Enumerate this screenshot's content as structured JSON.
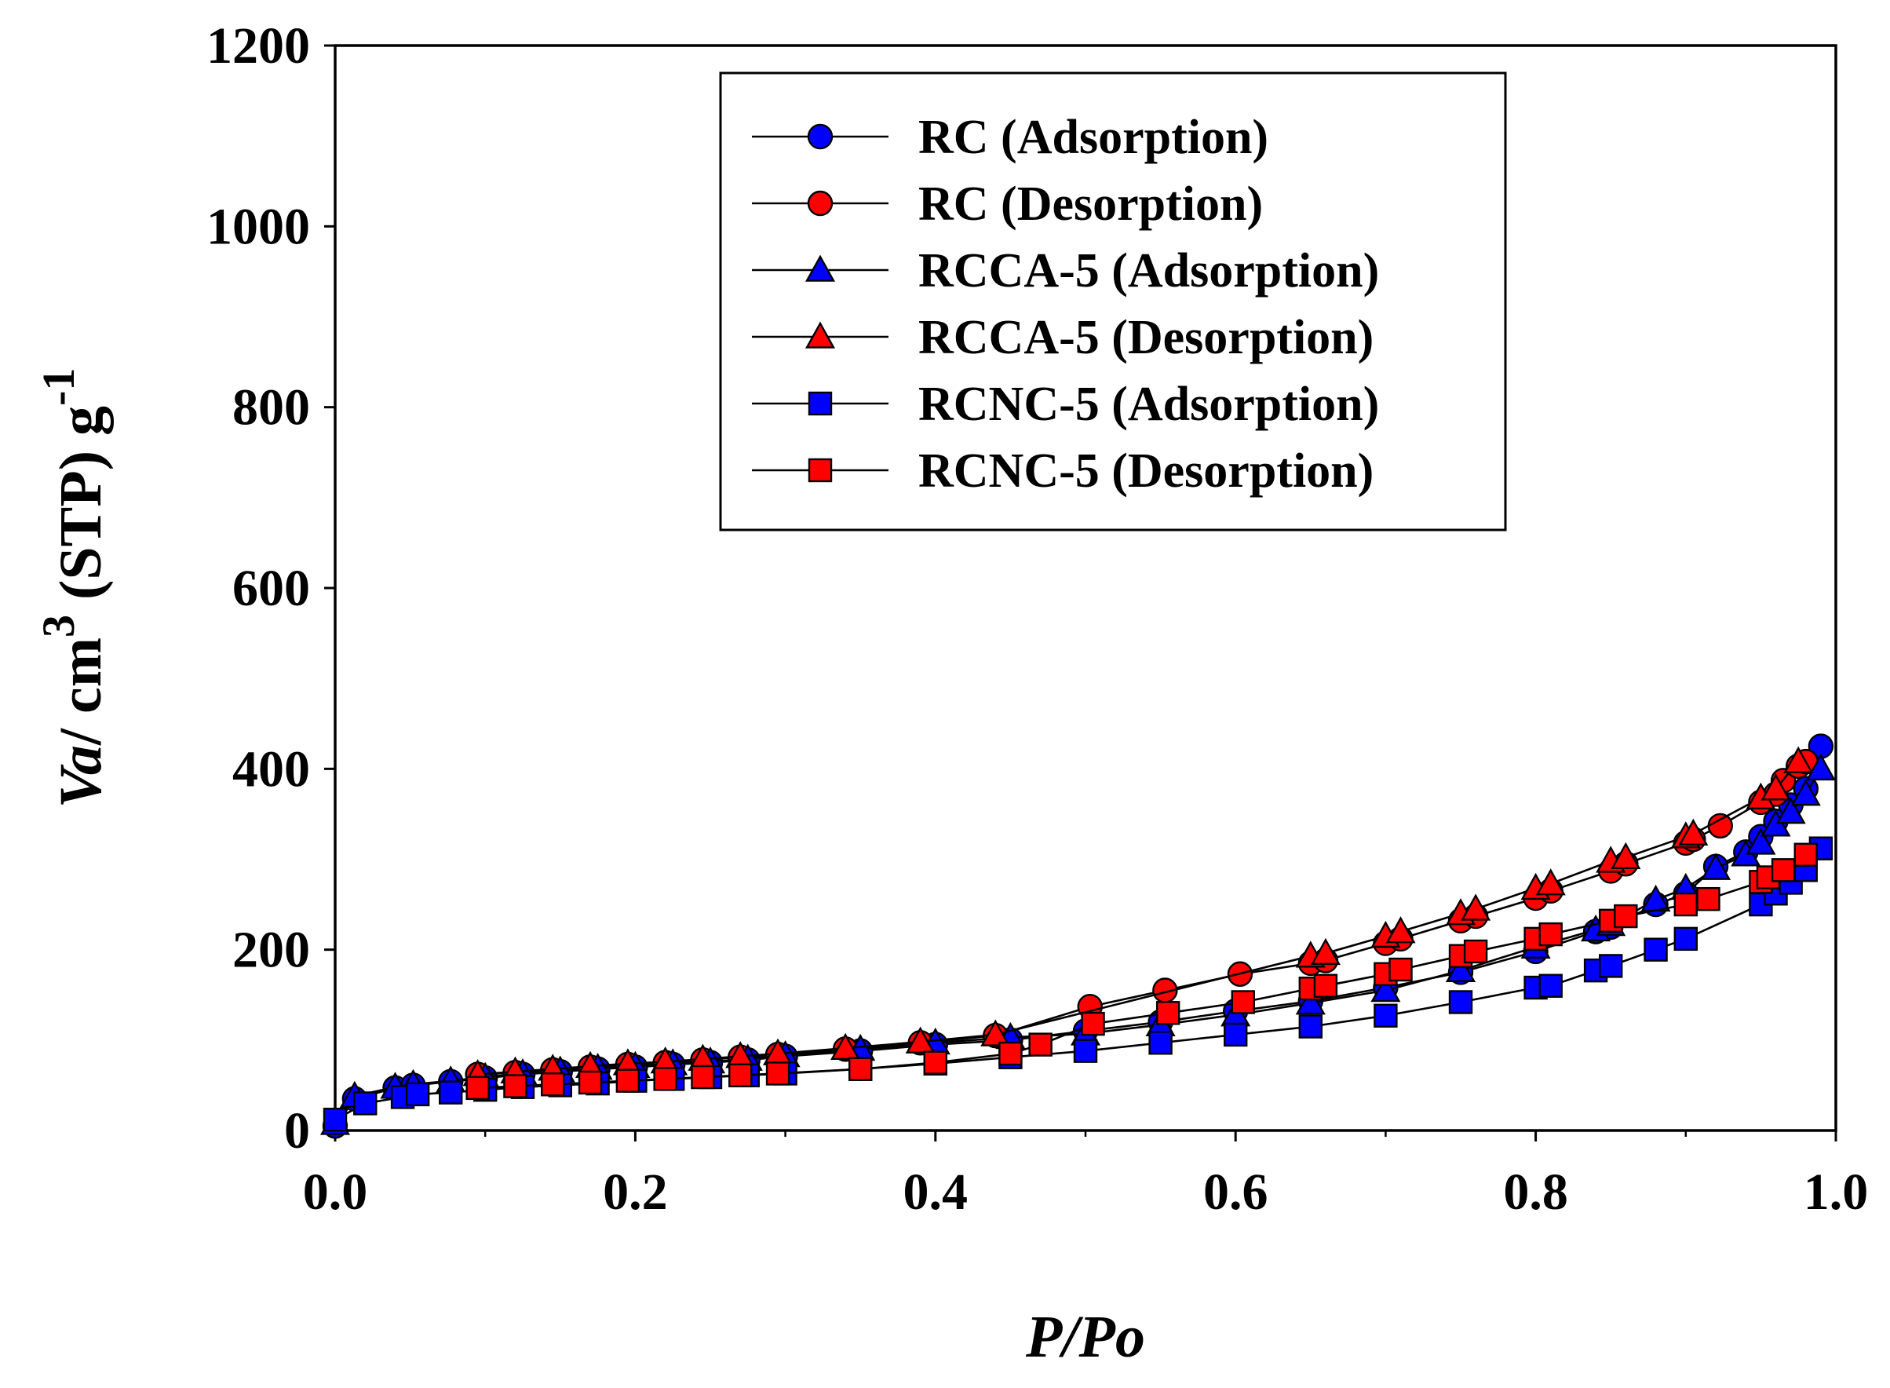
{
  "colors": {
    "adsorption": "#0000FF",
    "desorption": "#FF0000",
    "line": "#000000"
  },
  "chart_data": {
    "type": "line",
    "title": "",
    "xlabel": "P/Po",
    "ylabel": "Va/ cm3 (STP) g-1",
    "ylabel_parts": {
      "va": "Va",
      "unit": "/ cm",
      "exp1": "3",
      "stp": " (STP) g",
      "exp2": "-1"
    },
    "xlim": [
      0.0,
      1.0
    ],
    "ylim": [
      0,
      1200
    ],
    "xticks": [
      "0.0",
      "0.2",
      "0.4",
      "0.6",
      "0.8",
      "1.0"
    ],
    "yticks": [
      "0",
      "200",
      "400",
      "600",
      "800",
      "1000",
      "1200"
    ],
    "legend_position": "top-center",
    "series": [
      {
        "name": "RC (Adsorption)",
        "marker": "circle",
        "color": "#0000FF",
        "x": [
          0.0,
          0.013,
          0.04,
          0.052,
          0.077,
          0.1,
          0.125,
          0.15,
          0.175,
          0.2,
          0.225,
          0.25,
          0.275,
          0.3,
          0.35,
          0.4,
          0.45,
          0.5,
          0.55,
          0.6,
          0.65,
          0.7,
          0.75,
          0.8,
          0.84,
          0.85,
          0.88,
          0.9,
          0.92,
          0.94,
          0.95,
          0.96,
          0.97,
          0.98,
          0.99
        ],
        "y": [
          5,
          35,
          47,
          50,
          54,
          58,
          62,
          65,
          68,
          70,
          73,
          75,
          78,
          82,
          88,
          95,
          100,
          110,
          120,
          132,
          143,
          158,
          175,
          198,
          220,
          225,
          250,
          262,
          292,
          308,
          325,
          342,
          360,
          378,
          425
        ]
      },
      {
        "name": "RC (Desorption)",
        "marker": "circle",
        "color": "#FF0000",
        "x": [
          0.095,
          0.12,
          0.145,
          0.17,
          0.195,
          0.22,
          0.245,
          0.27,
          0.295,
          0.34,
          0.39,
          0.44,
          0.503,
          0.553,
          0.603,
          0.65,
          0.66,
          0.7,
          0.71,
          0.75,
          0.76,
          0.8,
          0.81,
          0.85,
          0.86,
          0.9,
          0.905,
          0.923,
          0.95,
          0.96,
          0.965,
          0.975,
          0.98
        ],
        "y": [
          62,
          64,
          67,
          70,
          73,
          75,
          78,
          81,
          84,
          90,
          97,
          105,
          137,
          155,
          173,
          185,
          188,
          207,
          212,
          232,
          237,
          257,
          265,
          287,
          295,
          318,
          322,
          337,
          363,
          372,
          387,
          403,
          408
        ]
      },
      {
        "name": "RCCA-5 (Adsorption)",
        "marker": "triangle",
        "color": "#0000FF",
        "x": [
          0.0,
          0.013,
          0.04,
          0.052,
          0.077,
          0.1,
          0.125,
          0.15,
          0.175,
          0.2,
          0.225,
          0.25,
          0.275,
          0.3,
          0.35,
          0.4,
          0.45,
          0.5,
          0.55,
          0.6,
          0.65,
          0.7,
          0.75,
          0.8,
          0.84,
          0.85,
          0.88,
          0.9,
          0.92,
          0.94,
          0.95,
          0.96,
          0.97,
          0.98,
          0.99
        ],
        "y": [
          8,
          38,
          48,
          51,
          55,
          59,
          63,
          66,
          69,
          71,
          74,
          76,
          79,
          83,
          90,
          97,
          103,
          107,
          117,
          128,
          141,
          155,
          177,
          203,
          222,
          228,
          255,
          268,
          290,
          305,
          318,
          338,
          352,
          372,
          400
        ]
      },
      {
        "name": "RCCA-5 (Desorption)",
        "marker": "triangle",
        "color": "#FF0000",
        "x": [
          0.095,
          0.12,
          0.145,
          0.17,
          0.195,
          0.22,
          0.245,
          0.27,
          0.295,
          0.34,
          0.39,
          0.44,
          0.65,
          0.66,
          0.7,
          0.71,
          0.75,
          0.76,
          0.8,
          0.81,
          0.85,
          0.86,
          0.9,
          0.905,
          0.95,
          0.96,
          0.975
        ],
        "y": [
          62,
          65,
          68,
          71,
          74,
          76,
          79,
          82,
          85,
          91,
          98,
          106,
          193,
          196,
          215,
          220,
          240,
          245,
          268,
          273,
          298,
          302,
          325,
          328,
          368,
          378,
          408
        ]
      },
      {
        "name": "RCNC-5 (Adsorption)",
        "marker": "square",
        "color": "#0000FF",
        "x": [
          0.0,
          0.02,
          0.045,
          0.055,
          0.077,
          0.1,
          0.125,
          0.15,
          0.175,
          0.2,
          0.225,
          0.25,
          0.275,
          0.3,
          0.35,
          0.4,
          0.45,
          0.5,
          0.55,
          0.6,
          0.65,
          0.7,
          0.75,
          0.8,
          0.81,
          0.84,
          0.85,
          0.88,
          0.9,
          0.95,
          0.96,
          0.97,
          0.98,
          0.99
        ],
        "y": [
          12,
          30,
          37,
          40,
          42,
          45,
          48,
          50,
          52,
          55,
          57,
          59,
          61,
          63,
          68,
          74,
          81,
          88,
          97,
          106,
          115,
          127,
          142,
          158,
          160,
          177,
          182,
          200,
          212,
          250,
          262,
          274,
          288,
          312
        ]
      },
      {
        "name": "RCNC-5 (Desorption)",
        "marker": "square",
        "color": "#FF0000",
        "x": [
          0.095,
          0.12,
          0.145,
          0.17,
          0.195,
          0.22,
          0.245,
          0.27,
          0.295,
          0.35,
          0.4,
          0.45,
          0.47,
          0.505,
          0.555,
          0.605,
          0.65,
          0.66,
          0.7,
          0.71,
          0.75,
          0.76,
          0.8,
          0.81,
          0.85,
          0.86,
          0.9,
          0.915,
          0.95,
          0.955,
          0.965,
          0.98
        ],
        "y": [
          47,
          49,
          51,
          53,
          55,
          57,
          59,
          61,
          63,
          68,
          75,
          85,
          95,
          118,
          130,
          142,
          157,
          160,
          173,
          178,
          193,
          198,
          212,
          217,
          232,
          237,
          250,
          256,
          275,
          280,
          288,
          305
        ]
      }
    ]
  }
}
